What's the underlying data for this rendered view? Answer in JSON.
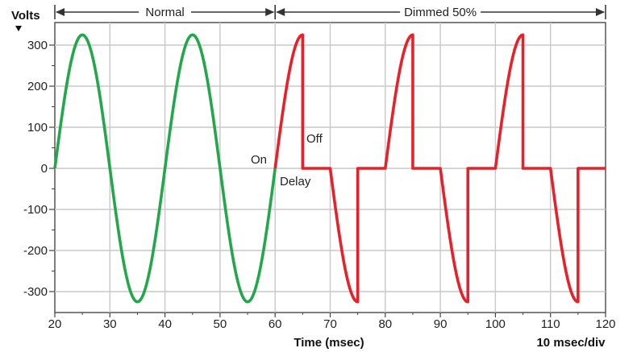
{
  "chart_data": {
    "type": "line",
    "ylabel": "Volts",
    "xlabel": "Time (msec)",
    "scale_note": "10 msec/div",
    "xlim": [
      20,
      120
    ],
    "ylim": [
      -350,
      350
    ],
    "x_ticks": [
      20,
      30,
      40,
      50,
      60,
      70,
      80,
      90,
      100,
      110,
      120
    ],
    "y_ticks": [
      300,
      200,
      100,
      0,
      -100,
      -200,
      -300
    ],
    "y_tick_labels": [
      "300",
      "200",
      "100",
      "0",
      "-100",
      "-200",
      "-300"
    ],
    "grid": true,
    "regions": [
      {
        "label": "Normal",
        "x_start": 20,
        "x_end": 60
      },
      {
        "label": "Dimmed 50%",
        "x_start": 60,
        "x_end": 120
      }
    ],
    "annotations": [
      {
        "text": "On",
        "x": 60,
        "y": 0
      },
      {
        "text": "Off",
        "x": 65,
        "y": 0
      },
      {
        "text": "Delay",
        "x": 60,
        "y": 0
      }
    ],
    "amplitude": 325,
    "period_ms": 20,
    "series": [
      {
        "color": "#22a84a",
        "x": [
          20,
          25,
          30,
          35,
          40,
          45,
          50,
          55,
          60
        ],
        "values": [
          0,
          325,
          0,
          -325,
          0,
          325,
          0,
          -325,
          0
        ]
      },
      {
        "color": "#e8202a",
        "x": [
          60,
          65,
          65,
          70,
          75,
          75,
          80,
          85,
          85,
          90,
          95,
          95,
          100,
          105,
          105,
          110,
          115,
          115,
          120
        ],
        "values": [
          0,
          325,
          0,
          0,
          -325,
          0,
          0,
          325,
          0,
          0,
          -325,
          0,
          0,
          325,
          0,
          0,
          -325,
          0,
          0
        ]
      }
    ]
  }
}
